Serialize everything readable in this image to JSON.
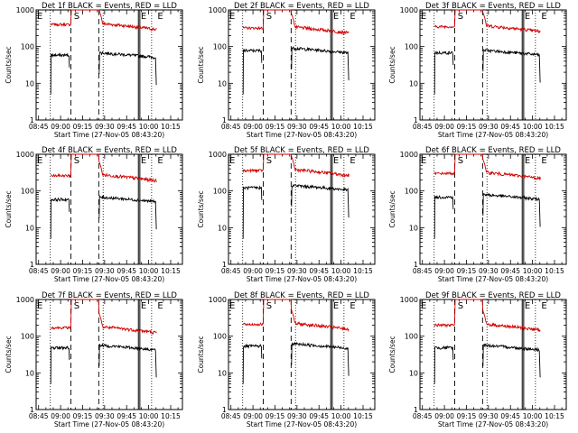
{
  "figure": {
    "xlabel": "Start Time (27-Nov-05 08:43:20)",
    "ylabel": "Counts/sec",
    "xtick_labels": [
      "08:45",
      "09:00",
      "09:15",
      "09:30",
      "09:45",
      "10:00",
      "10:15"
    ],
    "ytick_labels": [
      "1",
      "10",
      "100",
      "1000"
    ],
    "marker_labels": [
      "E",
      "S",
      "E",
      "E"
    ]
  },
  "chart_data": [
    {
      "type": "line",
      "title": "Det 1f BLACK = Events, RED = LLD",
      "yscale": "log",
      "ylim": [
        1,
        1000
      ],
      "xlim": [
        "08:43:20",
        "10:23:00"
      ],
      "series": [
        {
          "name": "Events",
          "color": "#000000",
          "level": 60
        },
        {
          "name": "LLD",
          "color": "#d00000",
          "level": 400
        }
      ],
      "markers": {
        "dotted": [
          "08:53",
          "09:29",
          "10:02"
        ],
        "dashed": [
          "09:07",
          "09:26"
        ],
        "solid": [
          "09:53",
          "09:54"
        ]
      }
    },
    {
      "type": "line",
      "title": "Det 2f BLACK = Events, RED = LLD",
      "yscale": "log",
      "ylim": [
        1,
        1000
      ],
      "xlim": [
        "08:43:20",
        "10:23:00"
      ],
      "series": [
        {
          "name": "Events",
          "color": "#000000",
          "level": 80
        },
        {
          "name": "LLD",
          "color": "#d00000",
          "level": 320
        }
      ],
      "markers": {
        "dotted": [
          "08:53",
          "09:29",
          "10:02"
        ],
        "dashed": [
          "09:07",
          "09:26"
        ],
        "solid": [
          "09:53",
          "09:54"
        ]
      }
    },
    {
      "type": "line",
      "title": "Det 3f BLACK = Events, RED = LLD",
      "yscale": "log",
      "ylim": [
        1,
        1000
      ],
      "xlim": [
        "08:43:20",
        "10:23:00"
      ],
      "series": [
        {
          "name": "Events",
          "color": "#000000",
          "level": 70
        },
        {
          "name": "LLD",
          "color": "#d00000",
          "level": 350
        }
      ],
      "markers": {
        "dotted": [
          "08:53",
          "09:29",
          "10:02"
        ],
        "dashed": [
          "09:07",
          "09:26"
        ],
        "solid": [
          "09:53",
          "09:54"
        ]
      }
    },
    {
      "type": "line",
      "title": "Det 4f BLACK = Events, RED = LLD",
      "yscale": "log",
      "ylim": [
        1,
        1000
      ],
      "xlim": [
        "08:43:20",
        "10:23:00"
      ],
      "series": [
        {
          "name": "Events",
          "color": "#000000",
          "level": 60
        },
        {
          "name": "LLD",
          "color": "#d00000",
          "level": 260
        }
      ],
      "markers": {
        "dotted": [
          "08:53",
          "09:29",
          "10:02"
        ],
        "dashed": [
          "09:07",
          "09:26"
        ],
        "solid": [
          "09:53",
          "09:54"
        ]
      }
    },
    {
      "type": "line",
      "title": "Det 5f BLACK = Events, RED = LLD",
      "yscale": "log",
      "ylim": [
        1,
        1000
      ],
      "xlim": [
        "08:43:20",
        "10:23:00"
      ],
      "series": [
        {
          "name": "Events",
          "color": "#000000",
          "level": 125
        },
        {
          "name": "LLD",
          "color": "#d00000",
          "level": 360
        }
      ],
      "markers": {
        "dotted": [
          "08:53",
          "09:29",
          "10:02"
        ],
        "dashed": [
          "09:07",
          "09:26"
        ],
        "solid": [
          "09:53",
          "09:54"
        ]
      }
    },
    {
      "type": "line",
      "title": "Det 6f BLACK = Events, RED = LLD",
      "yscale": "log",
      "ylim": [
        1,
        1000
      ],
      "xlim": [
        "08:43:20",
        "10:23:00"
      ],
      "series": [
        {
          "name": "Events",
          "color": "#000000",
          "level": 70
        },
        {
          "name": "LLD",
          "color": "#d00000",
          "level": 300
        }
      ],
      "markers": {
        "dotted": [
          "08:53",
          "09:29",
          "10:02"
        ],
        "dashed": [
          "09:07",
          "09:26"
        ],
        "solid": [
          "09:53",
          "09:54"
        ]
      }
    },
    {
      "type": "line",
      "title": "Det 7f BLACK = Events, RED = LLD",
      "yscale": "log",
      "ylim": [
        1,
        1000
      ],
      "xlim": [
        "08:43:20",
        "10:23:00"
      ],
      "series": [
        {
          "name": "Events",
          "color": "#000000",
          "level": 50
        },
        {
          "name": "LLD",
          "color": "#d00000",
          "level": 170
        }
      ],
      "markers": {
        "dotted": [
          "08:53",
          "09:29",
          "10:02"
        ],
        "dashed": [
          "09:07",
          "09:26"
        ],
        "solid": [
          "09:53",
          "09:54"
        ]
      }
    },
    {
      "type": "line",
      "title": "Det 8f BLACK = Events, RED = LLD",
      "yscale": "log",
      "ylim": [
        1,
        1000
      ],
      "xlim": [
        "08:43:20",
        "10:23:00"
      ],
      "series": [
        {
          "name": "Events",
          "color": "#000000",
          "level": 55
        },
        {
          "name": "LLD",
          "color": "#d00000",
          "level": 210
        }
      ],
      "markers": {
        "dotted": [
          "08:53",
          "09:29",
          "10:02"
        ],
        "dashed": [
          "09:07",
          "09:26"
        ],
        "solid": [
          "09:53",
          "09:54"
        ]
      }
    },
    {
      "type": "line",
      "title": "Det 9f BLACK = Events, RED = LLD",
      "yscale": "log",
      "ylim": [
        1,
        1000
      ],
      "xlim": [
        "08:43:20",
        "10:23:00"
      ],
      "series": [
        {
          "name": "Events",
          "color": "#000000",
          "level": 50
        },
        {
          "name": "LLD",
          "color": "#d00000",
          "level": 200
        }
      ],
      "markers": {
        "dotted": [
          "08:53",
          "09:29",
          "10:02"
        ],
        "dashed": [
          "09:07",
          "09:26"
        ],
        "solid": [
          "09:53",
          "09:54"
        ]
      }
    }
  ]
}
